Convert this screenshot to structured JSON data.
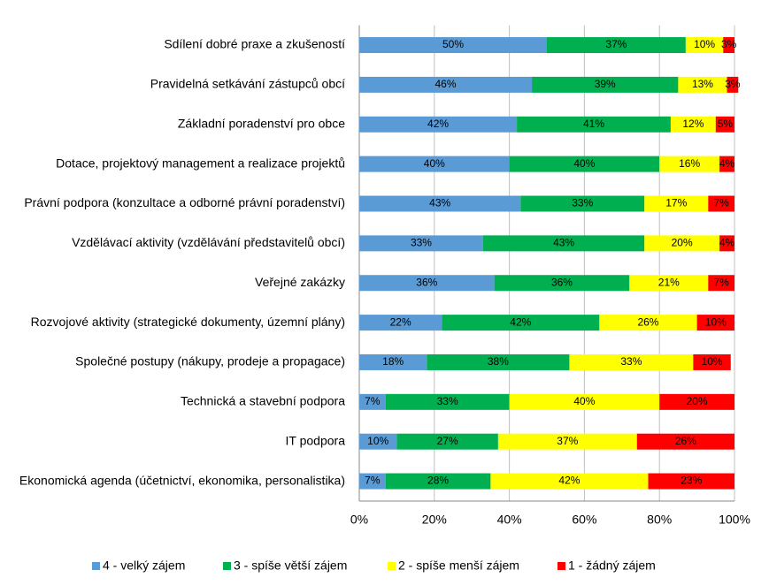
{
  "chart_data": {
    "type": "stacked_bar_horizontal",
    "categories": [
      "Sdílení dobré praxe a zkušeností",
      "Pravidelná setkávání zástupců obcí",
      "Základní poradenství pro obce",
      "Dotace, projektový management a realizace projektů",
      "Právní podpora (konzultace a odborné právní poradenství)",
      "Vzdělávací aktivity (vzdělávání představitelů obcí)",
      "Veřejné zakázky",
      "Rozvojové aktivity (strategické dokumenty, územní plány)",
      "Společné postupy (nákupy, prodeje a propagace)",
      "Technická a stavební podpora",
      "IT podpora",
      "Ekonomická agenda (účetnictví, ekonomika, personalistika)"
    ],
    "series": [
      {
        "name": "4 - velký zájem",
        "color": "#5b9bd5",
        "values": [
          50,
          46,
          42,
          40,
          43,
          33,
          36,
          22,
          18,
          7,
          10,
          7
        ],
        "value_labels": [
          "50%",
          "46%",
          "42%",
          "40%",
          "43%",
          "33%",
          "36%",
          "22%",
          "18%",
          "7%",
          "10%",
          "7%"
        ]
      },
      {
        "name": "3 - spíše větší zájem",
        "color": "#00b050",
        "values": [
          37,
          39,
          41,
          40,
          33,
          43,
          36,
          42,
          38,
          33,
          27,
          28
        ],
        "value_labels": [
          "37%",
          "39%",
          "41%",
          "40%",
          "33%",
          "43%",
          "36%",
          "42%",
          "38%",
          "33%",
          "27%",
          "28%"
        ]
      },
      {
        "name": "2 - spíše menší zájem",
        "color": "#ffff00",
        "values": [
          10,
          13,
          12,
          16,
          17,
          20,
          21,
          26,
          33,
          40,
          37,
          42
        ],
        "value_labels": [
          "10%",
          "13%",
          "12%",
          "16%",
          "17%",
          "20%",
          "21%",
          "26%",
          "33%",
          "40%",
          "37%",
          "42%"
        ]
      },
      {
        "name": "1 - žádný zájem",
        "color": "#ff0000",
        "values": [
          3,
          3,
          5,
          4,
          7,
          4,
          7,
          10,
          10,
          20,
          26,
          23
        ],
        "value_labels": [
          "3%",
          "3%",
          "5%",
          "4%",
          "7%",
          "4%",
          "7%",
          "10%",
          "10%",
          "20%",
          "26%",
          "23%"
        ]
      }
    ],
    "xlim": [
      0,
      100
    ],
    "xticks": [
      {
        "value": 0,
        "label": "0%"
      },
      {
        "value": 20,
        "label": "20%"
      },
      {
        "value": 40,
        "label": "40%"
      },
      {
        "value": 60,
        "label": "60%"
      },
      {
        "value": 80,
        "label": "80%"
      },
      {
        "value": 100,
        "label": "100%"
      }
    ],
    "grid": true,
    "legend": "bottom"
  }
}
